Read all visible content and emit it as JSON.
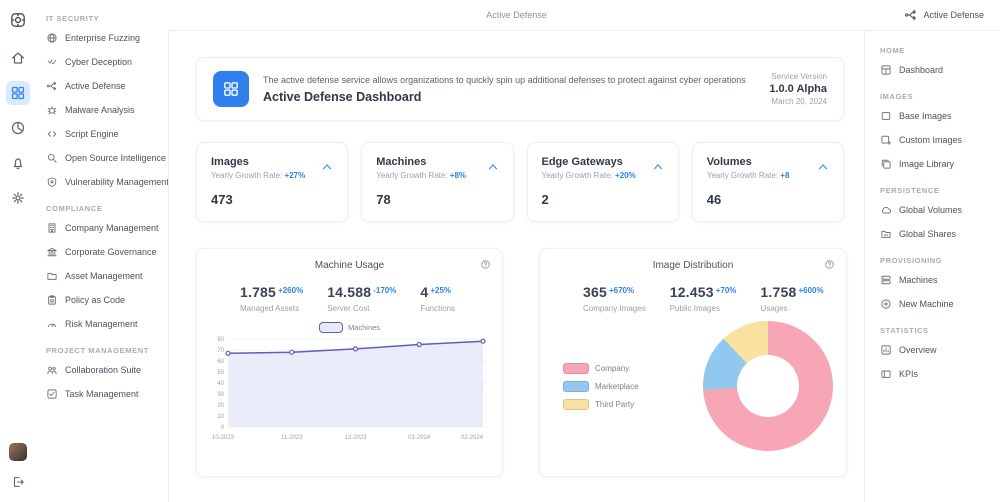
{
  "topbar": {
    "title": "Active Defense",
    "action_label": "Active Defense"
  },
  "icon_rail": {
    "logo_icon": "logo",
    "items": [
      {
        "icon": "home",
        "active": false
      },
      {
        "icon": "grid",
        "active": true
      },
      {
        "icon": "pie",
        "active": false
      },
      {
        "icon": "bell",
        "active": false
      },
      {
        "icon": "gear",
        "active": false
      }
    ]
  },
  "left_sidebar": {
    "sections": [
      {
        "title": "IT SECURITY",
        "items": [
          {
            "icon": "globe",
            "label": "Enterprise Fuzzing"
          },
          {
            "icon": "check",
            "label": "Cyber Deception"
          },
          {
            "icon": "branch",
            "label": "Active Defense"
          },
          {
            "icon": "bug",
            "label": "Malware Analysis"
          },
          {
            "icon": "code",
            "label": "Script Engine"
          },
          {
            "icon": "search",
            "label": "Open Source Intelligence"
          },
          {
            "icon": "shield",
            "label": "Vulnerability Management"
          }
        ]
      },
      {
        "title": "COMPLIANCE",
        "items": [
          {
            "icon": "building",
            "label": "Company Management"
          },
          {
            "icon": "bank",
            "label": "Corporate Governance"
          },
          {
            "icon": "folder",
            "label": "Asset Management"
          },
          {
            "icon": "clipboard",
            "label": "Policy as Code"
          },
          {
            "icon": "gauge",
            "label": "Risk Management"
          }
        ]
      },
      {
        "title": "PROJECT MANAGEMENT",
        "items": [
          {
            "icon": "people",
            "label": "Collaboration Suite"
          },
          {
            "icon": "task",
            "label": "Task Management"
          }
        ]
      }
    ]
  },
  "banner": {
    "description": "The active defense service allows organizations to quickly spin up additional defenses to protect against cyber operations",
    "title": "Active Defense Dashboard",
    "version_label": "Service Version",
    "version": "1.0.0 Alpha",
    "date": "March 20, 2024"
  },
  "stat_cards": [
    {
      "title": "Images",
      "rate_label": "Yearly Growth Rate:",
      "rate": "+27%",
      "value": "473"
    },
    {
      "title": "Machines",
      "rate_label": "Yearly Growth Rate:",
      "rate": "+8%",
      "value": "78"
    },
    {
      "title": "Edge Gateways",
      "rate_label": "Yearly Growth Rate:",
      "rate": "+20%",
      "value": "2"
    },
    {
      "title": "Volumes",
      "rate_label": "Yearly Growth Rate:",
      "rate": "+8",
      "value": "46"
    }
  ],
  "machine_usage": {
    "title": "Machine Usage",
    "stats": [
      {
        "value": "1.785",
        "delta": "+260%",
        "label": "Managed Assets"
      },
      {
        "value": "14.588",
        "delta": "-170%",
        "label": "Server Cost"
      },
      {
        "value": "4",
        "delta": "+25%",
        "label": "Functions"
      }
    ],
    "chart_data": {
      "type": "area",
      "x": [
        "10-2023",
        "11-2023",
        "12-2023",
        "01-2024",
        "02-2024"
      ],
      "series": [
        {
          "name": "Machines",
          "values": [
            67,
            68,
            71,
            75,
            78
          ]
        }
      ],
      "ylim": [
        0,
        80
      ],
      "ytick_step": 10,
      "grid": true,
      "legend_position": "top",
      "line_color": "#5a5fc0",
      "fill_color": "#e9eaf8"
    }
  },
  "image_distribution": {
    "title": "Image Distribution",
    "stats": [
      {
        "value": "365",
        "delta": "+670%",
        "label": "Company Images"
      },
      {
        "value": "12.453",
        "delta": "+70%",
        "label": "Public Images"
      },
      {
        "value": "1.758",
        "delta": "+600%",
        "label": "Usages"
      }
    ],
    "chart_data": {
      "type": "pie",
      "donut": true,
      "legend_position": "left",
      "series": [
        {
          "name": "Company",
          "value": 74,
          "color": "#f7a6b6"
        },
        {
          "name": "Marketplace",
          "value": 14,
          "color": "#90c8ef"
        },
        {
          "name": "Third Party",
          "value": 12,
          "color": "#fae1a0"
        }
      ]
    }
  },
  "right_sidebar": {
    "sections": [
      {
        "title": "HOME",
        "items": [
          {
            "icon": "layout",
            "label": "Dashboard"
          }
        ]
      },
      {
        "title": "IMAGES",
        "items": [
          {
            "icon": "square",
            "label": "Base Images"
          },
          {
            "icon": "square-plus",
            "label": "Custom Images"
          },
          {
            "icon": "stack",
            "label": "Image Library"
          }
        ]
      },
      {
        "title": "PERSISTENCE",
        "items": [
          {
            "icon": "cloud",
            "label": "Global Volumes"
          },
          {
            "icon": "folder-share",
            "label": "Global Shares"
          }
        ]
      },
      {
        "title": "PROVISIONING",
        "items": [
          {
            "icon": "server",
            "label": "Machines"
          },
          {
            "icon": "plus-circle",
            "label": "New Machine"
          }
        ]
      },
      {
        "title": "STATISTICS",
        "items": [
          {
            "icon": "chart",
            "label": "Overview"
          },
          {
            "icon": "panel",
            "label": "KPIs"
          }
        ]
      }
    ]
  },
  "theme": {
    "accent": "#2f80ed",
    "active_icon_bg": "#d8eafc",
    "line_color": "#5a5fc0",
    "area_fill": "#e9eaf8",
    "donut_colors": [
      "#f7a6b6",
      "#90c8ef",
      "#fae1a0"
    ]
  }
}
